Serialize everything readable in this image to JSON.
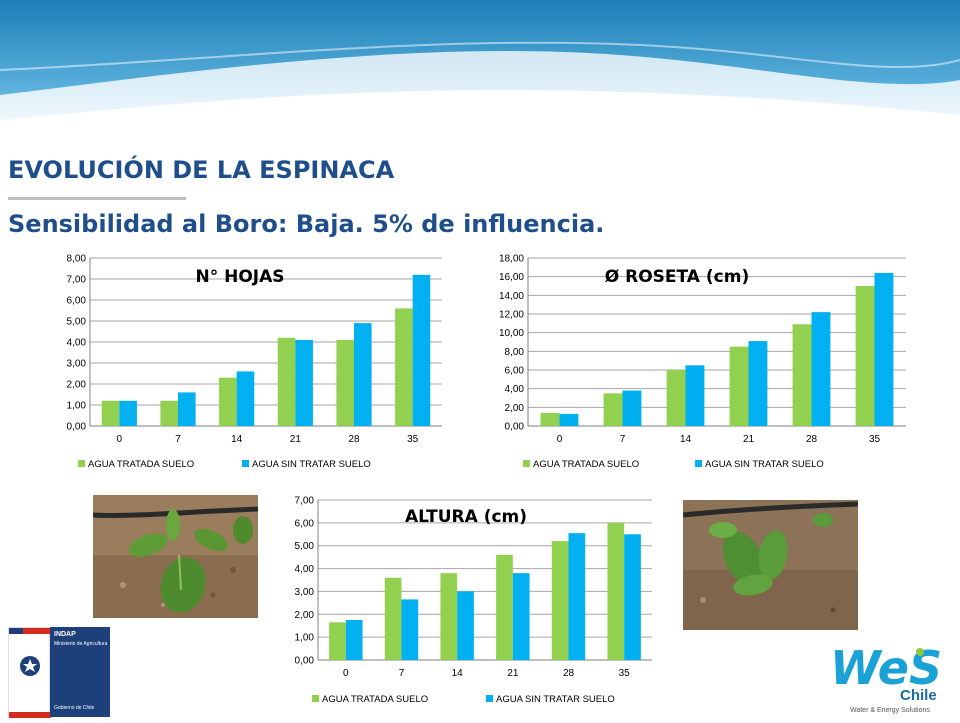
{
  "header": {
    "title": "EVOLUCIÓN DE LA ESPINACA",
    "subtitle": "Sensibilidad al Boro: Baja. 5% de influencia."
  },
  "colors": {
    "title": "#1f4e8c",
    "series_treated": "#92d050",
    "series_untreated": "#00b0f0",
    "banner": "#1b7fb6"
  },
  "chart_data": [
    {
      "id": "hojas",
      "type": "bar",
      "title": "N° HOJAS",
      "categories": [
        "0",
        "7",
        "14",
        "21",
        "28",
        "35"
      ],
      "series": [
        {
          "name": "AGUA TRATADA SUELO",
          "values": [
            1.2,
            1.2,
            2.3,
            4.2,
            4.1,
            5.6
          ]
        },
        {
          "name": "AGUA SIN TRATAR SUELO",
          "values": [
            1.2,
            1.6,
            2.6,
            4.1,
            4.9,
            7.2
          ]
        }
      ],
      "ylim": [
        0,
        8
      ],
      "yticks": [
        "0,00",
        "1,00",
        "2,00",
        "3,00",
        "4,00",
        "5,00",
        "6,00",
        "7,00",
        "8,00"
      ],
      "grid": true,
      "legend": "bottom"
    },
    {
      "id": "roseta",
      "type": "bar",
      "title": "Ø ROSETA (cm)",
      "categories": [
        "0",
        "7",
        "14",
        "21",
        "28",
        "35"
      ],
      "series": [
        {
          "name": "AGUA TRATADA SUELO",
          "values": [
            1.4,
            3.5,
            6.0,
            8.5,
            10.9,
            15.0
          ]
        },
        {
          "name": "AGUA SIN TRATAR SUELO",
          "values": [
            1.3,
            3.8,
            6.5,
            9.1,
            12.2,
            16.4
          ]
        }
      ],
      "ylim": [
        0,
        18
      ],
      "yticks": [
        "0,00",
        "2,00",
        "4,00",
        "6,00",
        "8,00",
        "10,00",
        "12,00",
        "14,00",
        "16,00",
        "18,00"
      ],
      "grid": true,
      "legend": "bottom"
    },
    {
      "id": "altura",
      "type": "bar",
      "title": "ALTURA (cm)",
      "categories": [
        "0",
        "7",
        "14",
        "21",
        "28",
        "35"
      ],
      "series": [
        {
          "name": "AGUA TRATADA SUELO",
          "values": [
            1.65,
            3.6,
            3.8,
            4.6,
            5.2,
            6.0
          ]
        },
        {
          "name": "AGUA SIN TRATAR SUELO",
          "values": [
            1.75,
            2.65,
            3.0,
            3.8,
            5.55,
            5.5
          ]
        }
      ],
      "ylim": [
        0,
        7
      ],
      "yticks": [
        "0,00",
        "1,00",
        "2,00",
        "3,00",
        "4,00",
        "5,00",
        "6,00",
        "7,00"
      ],
      "grid": true,
      "legend": "bottom"
    }
  ],
  "logos": {
    "indap": {
      "name": "INDAP",
      "ministry": "Ministerio de Agricultura",
      "gov": "Gobierno de Chile"
    },
    "wes": {
      "brand": "WeS",
      "country": "Chile",
      "tagline": "Water & Energy Solutions"
    }
  }
}
